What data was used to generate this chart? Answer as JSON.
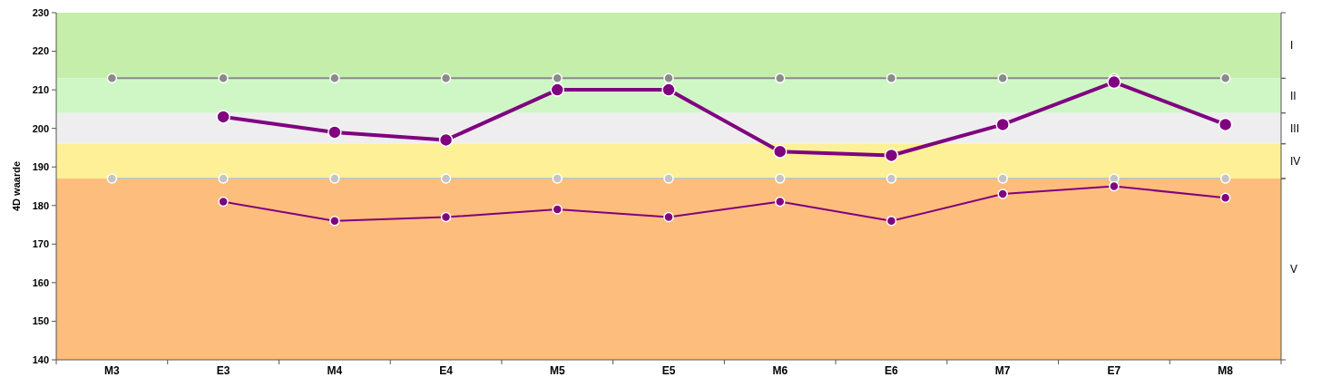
{
  "chart_data": {
    "type": "line",
    "ylabel": "4D waarde",
    "categories": [
      "M3",
      "E3",
      "M4",
      "E4",
      "M5",
      "E5",
      "M6",
      "E6",
      "M7",
      "E7",
      "M8"
    ],
    "series": [
      {
        "color": "#8a8a8a",
        "values": [
          213,
          213,
          213,
          213,
          213,
          213,
          213,
          213,
          213,
          213,
          213
        ]
      },
      {
        "color": "#c4c4c4",
        "values": [
          187,
          187,
          187,
          187,
          187,
          187,
          187,
          187,
          187,
          187,
          187
        ]
      },
      {
        "color": "#800080",
        "values": [
          null,
          203,
          199,
          197,
          210,
          210,
          194,
          193,
          201,
          212,
          201
        ]
      },
      {
        "color": "#800080",
        "values": [
          null,
          181,
          176,
          177,
          179,
          177,
          181,
          176,
          183,
          185,
          182
        ]
      }
    ],
    "ylim": [
      140,
      230
    ],
    "yticks": [
      140,
      150,
      160,
      170,
      180,
      190,
      200,
      210,
      220,
      230
    ],
    "bands": [
      {
        "axis": "y",
        "from": 213,
        "to": 230,
        "label": "I",
        "color": "#c4eeaa"
      },
      {
        "axis": "y",
        "from": 204,
        "to": 213,
        "label": "II",
        "color": "#cff7c6"
      },
      {
        "axis": "y",
        "from": 196,
        "to": 204,
        "label": "III",
        "color": "#eeeeee"
      },
      {
        "axis": "y",
        "from": 187,
        "to": 196,
        "label": "IV",
        "color": "#fdf096"
      },
      {
        "axis": "y",
        "from": 140,
        "to": 187,
        "label": "V",
        "color": "#fdbd7c"
      }
    ],
    "marker": "circle",
    "grid": false
  }
}
